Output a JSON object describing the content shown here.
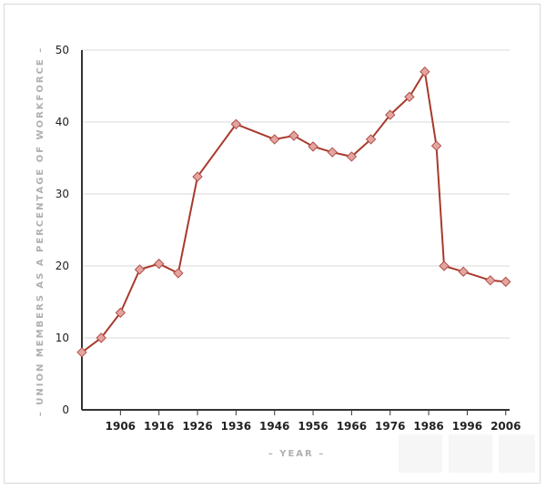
{
  "chart_data": {
    "type": "line",
    "title": "",
    "xlabel": "– YEAR –",
    "ylabel": "– UNION MEMBERS AS A PERCENTAGE OF WORKFORCE –",
    "xlim": [
      1896,
      2007
    ],
    "ylim": [
      0,
      50
    ],
    "y_ticks": [
      0,
      10,
      20,
      30,
      40,
      50
    ],
    "x_ticks": [
      1906,
      1916,
      1926,
      1936,
      1946,
      1956,
      1966,
      1976,
      1986,
      1996,
      2006
    ],
    "grid": "horizontal",
    "legend": "none",
    "colors": {
      "line": "#a83a2c",
      "marker_fill": "#e4a4a0",
      "marker_stroke": "#b05048",
      "grid": "#d9d9d9",
      "axis": "#333333"
    },
    "series": [
      {
        "x": [
          1896,
          1901,
          1906,
          1911,
          1916,
          1921,
          1926,
          1936,
          1946,
          1951,
          1956,
          1961,
          1966,
          1971,
          1976,
          1981,
          1985,
          1988,
          1990,
          1995,
          2002,
          2006
        ],
        "values": [
          8,
          10,
          13.5,
          19.5,
          20.3,
          19,
          32.4,
          39.7,
          37.6,
          38.1,
          36.6,
          35.8,
          35.2,
          37.6,
          41,
          43.5,
          47,
          36.7,
          20,
          19.2,
          18,
          17.8
        ]
      }
    ]
  }
}
